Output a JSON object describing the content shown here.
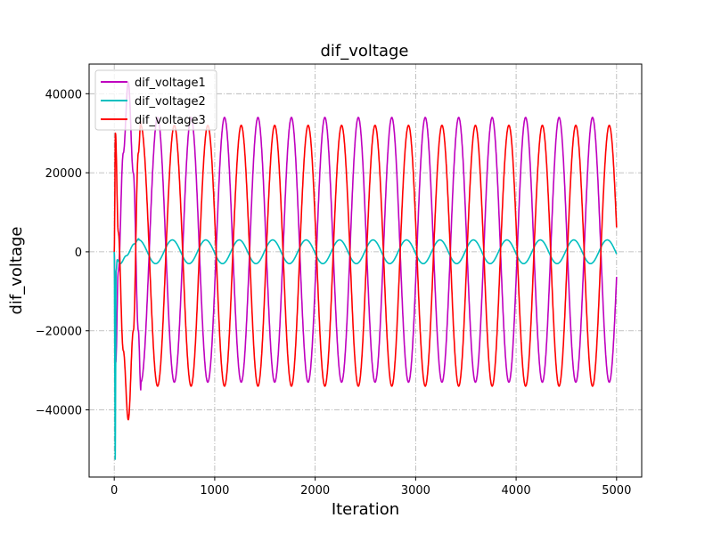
{
  "chart_data": {
    "type": "line",
    "title": "dif_voltage",
    "xlabel": "Iteration",
    "ylabel": "dif_voltage",
    "xlim": [
      -250,
      5250
    ],
    "ylim": [
      -57000,
      47500
    ],
    "xticks": [
      0,
      1000,
      2000,
      3000,
      4000,
      5000
    ],
    "xtick_labels": [
      "0",
      "1000",
      "2000",
      "3000",
      "4000",
      "5000"
    ],
    "yticks": [
      -40000,
      -20000,
      0,
      20000,
      40000
    ],
    "ytick_labels": [
      "−40000",
      "−20000",
      "0",
      "20000",
      "40000"
    ],
    "grid": true,
    "legend_position": "top-left",
    "x_range": [
      0,
      5000
    ],
    "period": 333,
    "series": [
      {
        "name": "dif_voltage1",
        "color": "#bf00bf",
        "transient": [
          [
            0,
            0
          ],
          [
            15,
            -28000
          ],
          [
            40,
            -5000
          ],
          [
            90,
            25000
          ],
          [
            140,
            43000
          ],
          [
            190,
            20000
          ],
          [
            240,
            -20000
          ],
          [
            265,
            -35000
          ]
        ],
        "steady": {
          "start": 265,
          "amplitude_pos": 34000,
          "amplitude_neg": -33000,
          "phase_deg": 270
        }
      },
      {
        "name": "dif_voltage2",
        "color": "#00bfbf",
        "transient": [
          [
            0,
            0
          ],
          [
            10,
            -52500
          ],
          [
            18,
            -5000
          ],
          [
            30,
            -2000
          ],
          [
            60,
            -3000
          ],
          [
            120,
            -1000
          ],
          [
            200,
            2000
          ],
          [
            245,
            3300
          ]
        ],
        "steady": {
          "start": 245,
          "amplitude_pos": 3000,
          "amplitude_neg": -3000,
          "phase_deg": 90
        }
      },
      {
        "name": "dif_voltage3",
        "color": "#ff0000",
        "transient": [
          [
            0,
            0
          ],
          [
            12,
            30000
          ],
          [
            40,
            5000
          ],
          [
            90,
            -25000
          ],
          [
            140,
            -42500
          ],
          [
            190,
            -20000
          ],
          [
            240,
            25000
          ],
          [
            265,
            33000
          ]
        ],
        "steady": {
          "start": 265,
          "amplitude_pos": 32000,
          "amplitude_neg": -34000,
          "phase_deg": 90
        }
      }
    ]
  }
}
